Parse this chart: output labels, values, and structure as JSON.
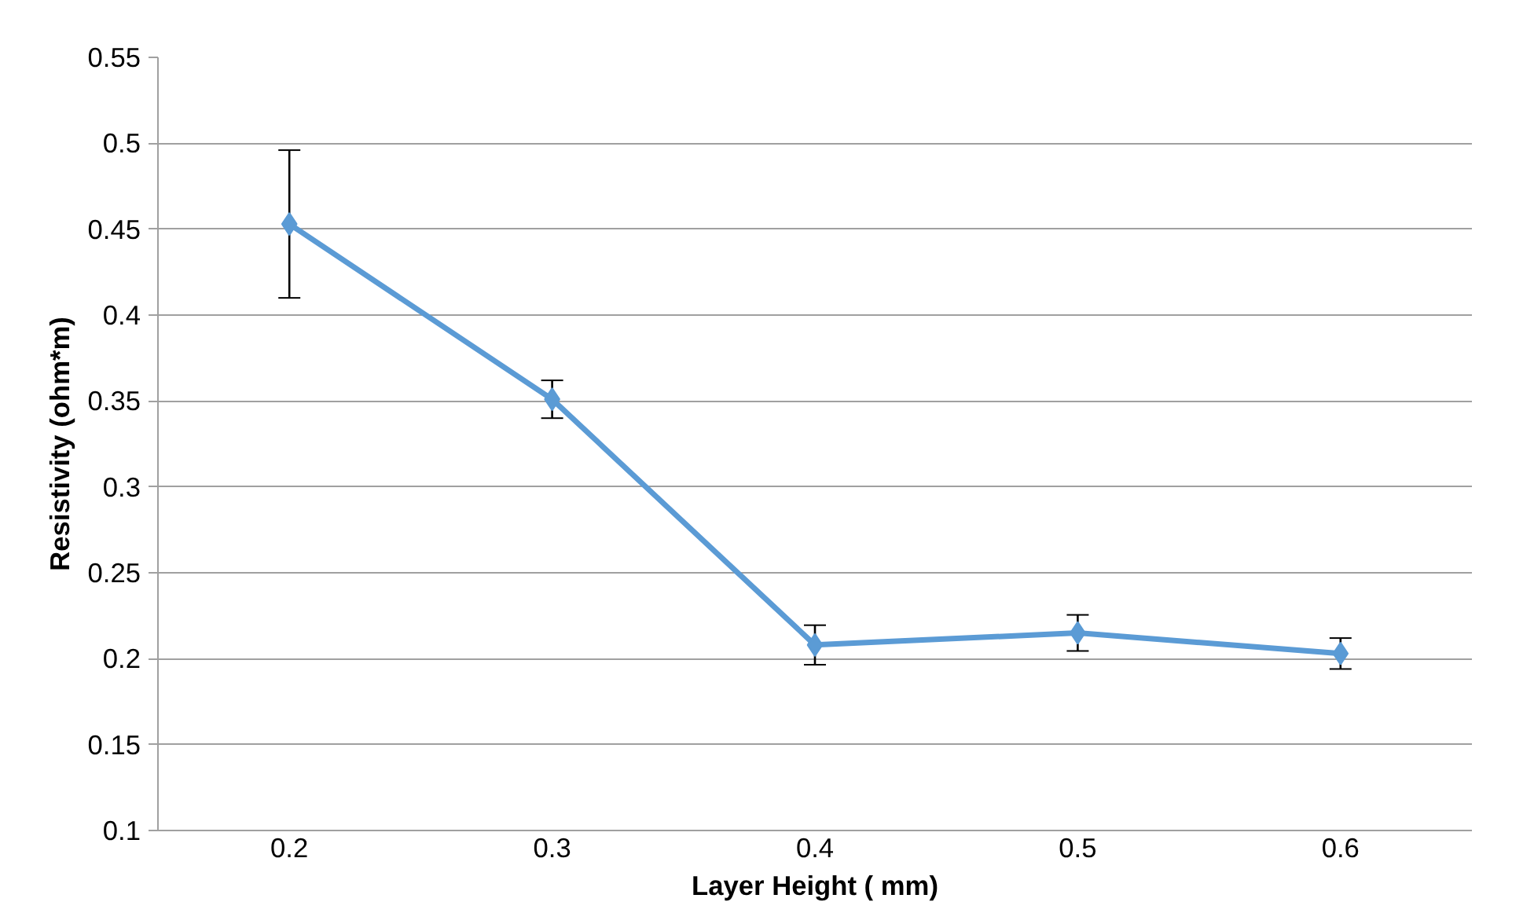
{
  "chart_data": {
    "type": "line",
    "xlabel": "Layer Height ( mm)",
    "ylabel": "Resistivity (ohm*m)",
    "categories": [
      "0.2",
      "0.3",
      "0.4",
      "0.5",
      "0.6"
    ],
    "series": [
      {
        "color": "#5b9bd5",
        "values": [
          0.453,
          0.351,
          0.208,
          0.215,
          0.203
        ],
        "errors": [
          0.043,
          0.011,
          0.0115,
          0.0105,
          0.009
        ]
      }
    ],
    "ylim": [
      0.1,
      0.55
    ],
    "yticks": [
      0.1,
      0.15,
      0.2,
      0.25,
      0.3,
      0.35,
      0.4,
      0.45,
      0.5,
      0.55
    ],
    "grid": "y",
    "marker": "diamond",
    "line_style": "solid"
  }
}
